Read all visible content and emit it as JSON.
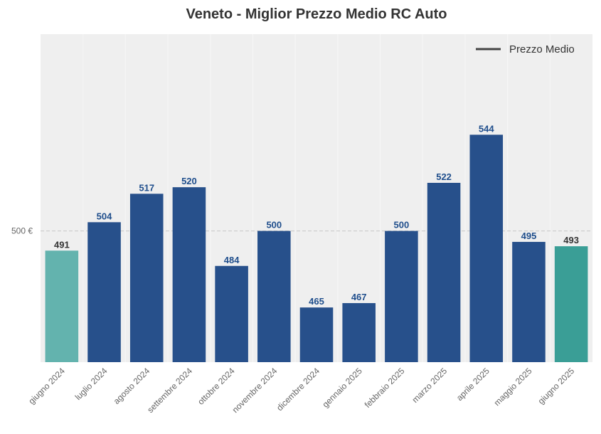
{
  "chart_data": {
    "type": "bar",
    "title": "Veneto - Miglior Prezzo Medio RC Auto",
    "xlabel": "",
    "ylabel": "",
    "categories": [
      "giugno 2024",
      "luglio 2024",
      "agosto 2024",
      "settembre 2024",
      "ottobre 2024",
      "novembre 2024",
      "dicembre 2024",
      "gennaio 2025",
      "febbraio 2025",
      "marzo 2025",
      "aprile 2025",
      "maggio 2025",
      "giugno 2025"
    ],
    "values": [
      491,
      504,
      517,
      520,
      484,
      500,
      465,
      467,
      500,
      522,
      544,
      495,
      493
    ],
    "data_labels": [
      "491",
      "504",
      "517",
      "520",
      "484",
      "500",
      "465",
      "467",
      "500",
      "522",
      "544",
      "495",
      "493"
    ],
    "ylim": [
      440,
      590
    ],
    "yticks": [
      500
    ],
    "ytick_labels": [
      "500 €"
    ],
    "reference_line": {
      "value": 500,
      "style": "dashed"
    },
    "legend": {
      "entries": [
        "Prezzo Medio"
      ],
      "position": "top-right"
    },
    "grid": true,
    "colors": {
      "bar_default": "#27508b",
      "bar_first": "#63b3ae",
      "bar_last": "#3a9e96",
      "label_default": "#1f4e8c",
      "label_highlight": "#333333",
      "plot_background": "#efefef",
      "reference_line": "#c8c8c8",
      "legend_line": "#444444"
    },
    "highlight_indices": [
      0,
      12
    ]
  }
}
